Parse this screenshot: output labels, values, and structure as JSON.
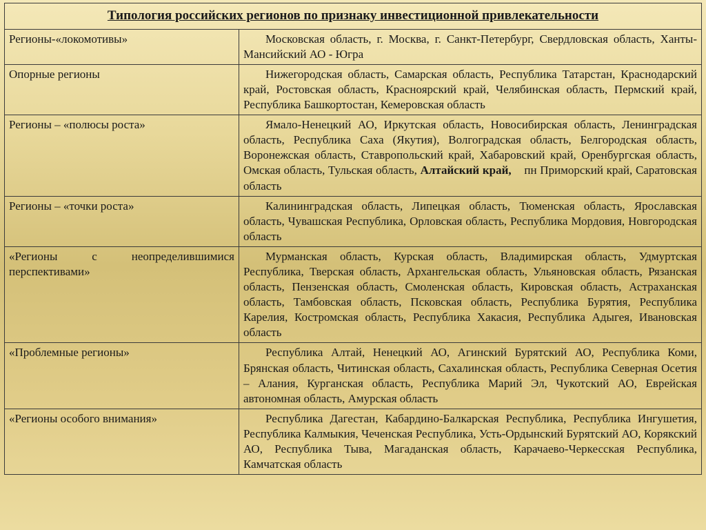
{
  "title": "Типология российских регионов по признаку инвестиционной привлекательности",
  "rows": [
    {
      "label": "Регионы-«локомотивы»",
      "content_pre": "Московская область, г. Москва, г. Санкт-Петербург, Свердловская область, Ханты-Мансийский АО - Югра"
    },
    {
      "label": "Опорные регионы",
      "content_pre": "Нижегородская область, Самарская область, Республика Татарстан, Краснодарский край, Ростовская область, Красноярский край, Челябинская область, Пермский край, Республика Башкортостан, Кемеровская область"
    },
    {
      "label": "Регионы – «полюсы роста»",
      "content_pre": "Ямало-Ненецкий АО, Иркутская область, Новосибирская область, Ленинградская область, Республика Саха (Якутия), Волгоградская область, Белгородская область, Воронежская область, Ставропольский край, Хабаровский край, Оренбургская область, Омская область, Тульская область, ",
      "content_bold": "Алтайский край,",
      "content_post": "    пн Приморский край, Саратовская область"
    },
    {
      "label": "Регионы – «точки роста»",
      "content_pre": "Калининградская область, Липецкая область, Тюменская область, Ярославская область, Чувашская Республика, Орловская область, Республика Мордовия, Новгородская область"
    },
    {
      "label": "«Регионы с неопределившимися перспективами»",
      "justified": true,
      "content_pre": "Мурманская область, Курская область, Владимирская область, Удмуртская Республика, Тверская область, Архангельская область, Ульяновская область, Рязанская область, Пензенская область, Смоленская область, Кировская область, Астраханская область, Тамбовская область, Псковская область, Республика Бурятия, Республика Карелия, Костромская область, Республика Хакасия, Республика Адыгея, Ивановская область"
    },
    {
      "label": "«Проблемные регионы»",
      "content_pre": "Республика Алтай, Ненецкий АО, Агинский Бурятский АО, Республика Коми, Брянская область, Читинская область, Сахалинская область, Республика Северная Осетия – Алания, Курганская область, Республика Марий Эл, Чукотский АО, Еврейская автономная область, Амурская область"
    },
    {
      "label": "«Регионы особого внимания»",
      "content_pre": "Республика Дагестан, Кабардино-Балкарская Республика, Республика Ингушетия, Республика Калмыкия, Чеченская Республика, Усть-Ордынский Бурятский АО, Корякский АО, Республика Тыва, Магаданская область, Карачаево-Черкесская Республика, Камчатская область"
    }
  ]
}
